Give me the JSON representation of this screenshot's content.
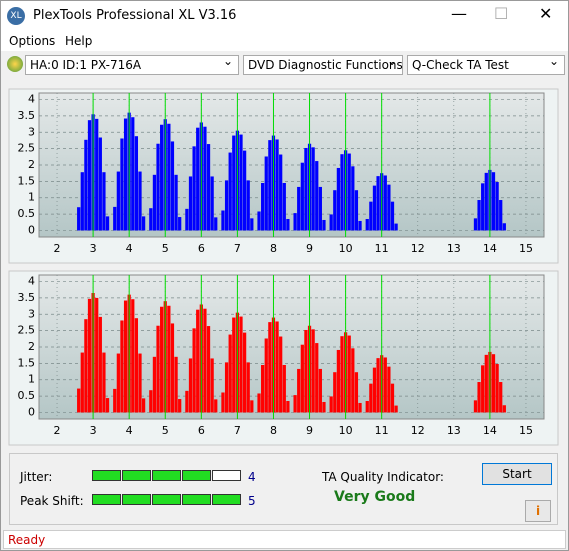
{
  "window": {
    "title": "PlexTools Professional XL V3.16"
  },
  "menu": [
    "Options",
    "Help"
  ],
  "toolbar": {
    "drive": "HA:0 ID:1  PX-716A",
    "function": "DVD Diagnostic Functions",
    "test": "Q-Check TA Test"
  },
  "chart_data": [
    {
      "type": "bar",
      "color": "#0000ff",
      "grid": true,
      "x": [
        2.6,
        2.7,
        2.8,
        2.9,
        3.0,
        3.1,
        3.2,
        3.3,
        3.4,
        3.6,
        3.7,
        3.8,
        3.9,
        4.0,
        4.1,
        4.2,
        4.3,
        4.4,
        4.6,
        4.7,
        4.8,
        4.9,
        5.0,
        5.1,
        5.2,
        5.3,
        5.4,
        5.6,
        5.7,
        5.8,
        5.9,
        6.0,
        6.1,
        6.2,
        6.3,
        6.4,
        6.6,
        6.7,
        6.8,
        6.9,
        7.0,
        7.1,
        7.2,
        7.3,
        7.4,
        7.6,
        7.7,
        7.8,
        7.9,
        8.0,
        8.1,
        8.2,
        8.3,
        8.4,
        8.6,
        8.7,
        8.8,
        8.9,
        9.0,
        9.1,
        9.2,
        9.3,
        9.4,
        9.6,
        9.7,
        9.8,
        9.9,
        10.0,
        10.1,
        10.2,
        10.3,
        10.4,
        10.6,
        10.7,
        10.8,
        10.9,
        11.0,
        11.1,
        11.2,
        11.3,
        11.4,
        13.6,
        13.7,
        13.8,
        13.9,
        14.0,
        14.1,
        14.2,
        14.3,
        14.4
      ],
      "values": [
        0.71,
        1.78,
        2.77,
        3.37,
        3.55,
        3.41,
        2.84,
        1.78,
        0.43,
        0.72,
        1.8,
        2.81,
        3.42,
        3.6,
        3.46,
        2.88,
        1.8,
        0.43,
        0.68,
        1.7,
        2.65,
        3.23,
        3.4,
        3.26,
        2.72,
        1.7,
        0.41,
        0.66,
        1.65,
        2.57,
        3.14,
        3.3,
        3.17,
        2.64,
        1.65,
        0.4,
        0.61,
        1.53,
        2.38,
        2.9,
        3.05,
        2.93,
        2.44,
        1.53,
        0.37,
        0.58,
        1.45,
        2.26,
        2.76,
        2.9,
        2.78,
        2.32,
        1.45,
        0.35,
        0.53,
        1.33,
        2.07,
        2.52,
        2.65,
        2.54,
        2.12,
        1.33,
        0.32,
        0.49,
        1.23,
        1.91,
        2.33,
        2.45,
        2.35,
        1.96,
        1.23,
        0.29,
        0.35,
        0.88,
        1.37,
        1.66,
        1.75,
        1.68,
        1.4,
        0.88,
        0.21,
        0.37,
        0.93,
        1.44,
        1.76,
        1.85,
        1.78,
        1.48,
        0.93,
        0.22
      ],
      "highlight_x": [
        3,
        4,
        5,
        6,
        7,
        8,
        9,
        10,
        11,
        14
      ],
      "xlim": [
        1.5,
        15.5
      ],
      "xticks": [
        2,
        3,
        4,
        5,
        6,
        7,
        8,
        9,
        10,
        11,
        12,
        13,
        14,
        15
      ],
      "ylim": [
        -0.2,
        4.2
      ],
      "yticks": [
        0,
        0.5,
        1,
        1.5,
        2,
        2.5,
        3,
        3.5,
        4
      ]
    },
    {
      "type": "bar",
      "color": "#ff0000",
      "grid": true,
      "x": [
        2.6,
        2.7,
        2.8,
        2.9,
        3.0,
        3.1,
        3.2,
        3.3,
        3.4,
        3.6,
        3.7,
        3.8,
        3.9,
        4.0,
        4.1,
        4.2,
        4.3,
        4.4,
        4.6,
        4.7,
        4.8,
        4.9,
        5.0,
        5.1,
        5.2,
        5.3,
        5.4,
        5.6,
        5.7,
        5.8,
        5.9,
        6.0,
        6.1,
        6.2,
        6.3,
        6.4,
        6.6,
        6.7,
        6.8,
        6.9,
        7.0,
        7.1,
        7.2,
        7.3,
        7.4,
        7.6,
        7.7,
        7.8,
        7.9,
        8.0,
        8.1,
        8.2,
        8.3,
        8.4,
        8.6,
        8.7,
        8.8,
        8.9,
        9.0,
        9.1,
        9.2,
        9.3,
        9.4,
        9.6,
        9.7,
        9.8,
        9.9,
        10.0,
        10.1,
        10.2,
        10.3,
        10.4,
        10.6,
        10.7,
        10.8,
        10.9,
        11.0,
        11.1,
        11.2,
        11.3,
        11.4,
        13.6,
        13.7,
        13.8,
        13.9,
        14.0,
        14.1,
        14.2,
        14.3,
        14.4
      ],
      "values": [
        0.73,
        1.83,
        2.85,
        3.47,
        3.65,
        3.5,
        2.92,
        1.83,
        0.44,
        0.72,
        1.8,
        2.81,
        3.42,
        3.6,
        3.46,
        2.88,
        1.8,
        0.43,
        0.68,
        1.7,
        2.65,
        3.23,
        3.4,
        3.26,
        2.72,
        1.7,
        0.41,
        0.66,
        1.65,
        2.57,
        3.14,
        3.3,
        3.17,
        2.64,
        1.65,
        0.4,
        0.61,
        1.53,
        2.38,
        2.9,
        3.05,
        2.93,
        2.44,
        1.53,
        0.37,
        0.58,
        1.45,
        2.26,
        2.76,
        2.9,
        2.78,
        2.32,
        1.45,
        0.35,
        0.53,
        1.33,
        2.07,
        2.52,
        2.65,
        2.54,
        2.12,
        1.33,
        0.32,
        0.49,
        1.23,
        1.91,
        2.33,
        2.45,
        2.35,
        1.96,
        1.23,
        0.29,
        0.35,
        0.88,
        1.37,
        1.66,
        1.75,
        1.68,
        1.4,
        0.88,
        0.21,
        0.37,
        0.93,
        1.44,
        1.76,
        1.85,
        1.78,
        1.48,
        0.93,
        0.22
      ],
      "highlight_x": [
        3,
        4,
        5,
        6,
        7,
        8,
        9,
        10,
        11,
        14
      ],
      "xlim": [
        1.5,
        15.5
      ],
      "xticks": [
        2,
        3,
        4,
        5,
        6,
        7,
        8,
        9,
        10,
        11,
        12,
        13,
        14,
        15
      ],
      "ylim": [
        -0.2,
        4.2
      ],
      "yticks": [
        0,
        0.5,
        1,
        1.5,
        2,
        2.5,
        3,
        3.5,
        4
      ]
    }
  ],
  "results": {
    "jitter_label": "Jitter:",
    "jitter": 4,
    "peak_shift_label": "Peak Shift:",
    "peak_shift": 5,
    "quality_label": "TA Quality Indicator:",
    "quality": "Very Good",
    "start": "Start"
  },
  "status": "Ready"
}
